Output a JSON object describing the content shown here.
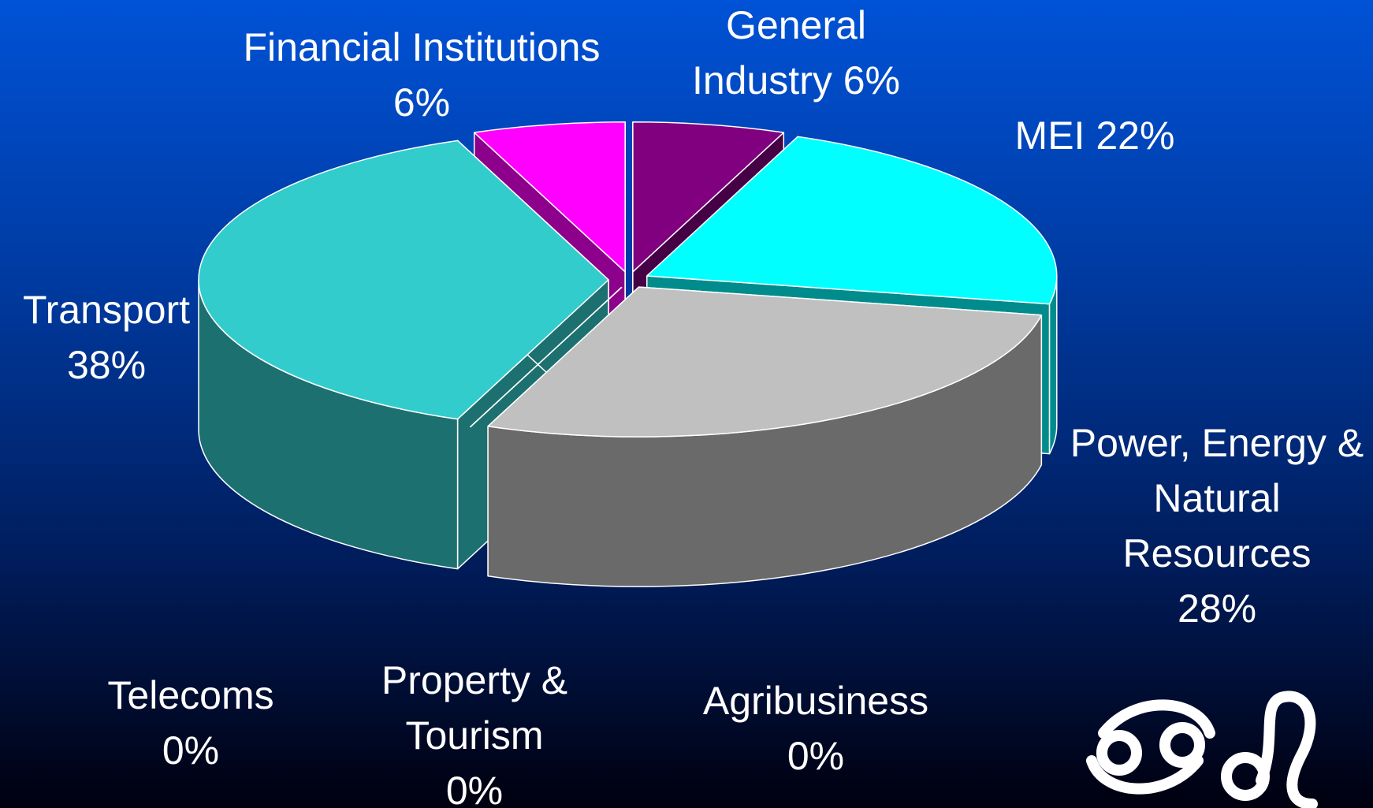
{
  "chart_data": {
    "type": "pie3d",
    "categories": [
      "General Industry",
      "MEI",
      "Power, Energy & Natural Resources",
      "Agribusiness",
      "Property & Tourism",
      "Telecoms",
      "Transport",
      "Financial Institutions"
    ],
    "values": [
      6,
      22,
      28,
      0,
      0,
      0,
      38,
      6
    ],
    "value_labels": [
      "6%",
      "22%",
      "28%",
      "0%",
      "0%",
      "0%",
      "38%",
      "6%"
    ],
    "colors": [
      "#800080",
      "#00ffff",
      "#c0c0c0",
      "#008000",
      "#ffcc00",
      "#ff6600",
      "#33cccc",
      "#ff00ff"
    ]
  }
}
